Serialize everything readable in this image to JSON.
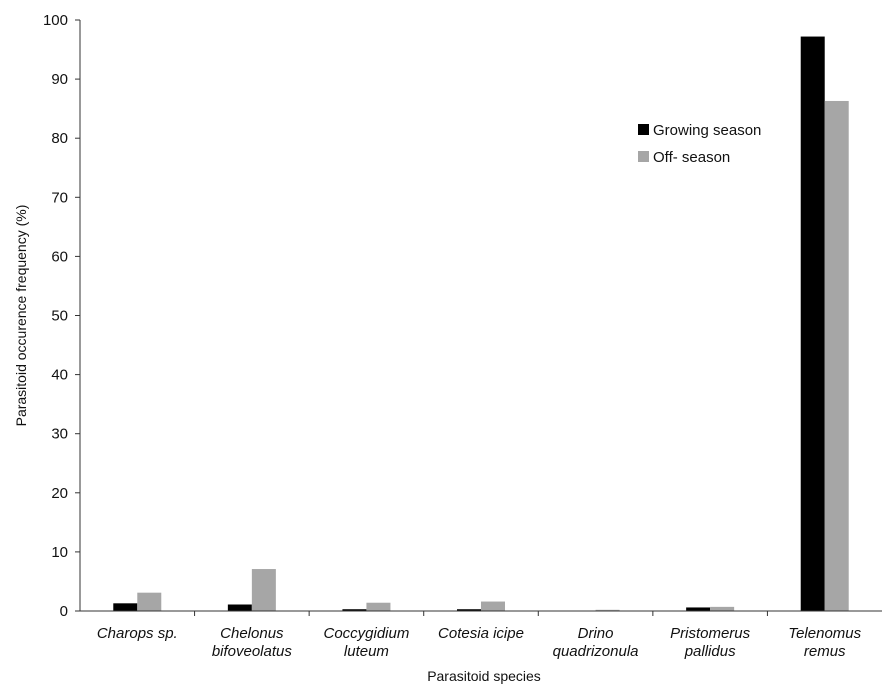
{
  "chart_data": {
    "type": "bar",
    "title": "",
    "xlabel": "Parasitoid species",
    "ylabel": "Parasitoid occurence  frequency (%)",
    "ylim": [
      0,
      100
    ],
    "yticks": [
      "0",
      "10",
      "20",
      "30",
      "40",
      "50",
      "60",
      "70",
      "80",
      "90",
      "100"
    ],
    "categories": [
      [
        "Charops sp."
      ],
      [
        "Chelonus",
        "bifoveolatus"
      ],
      [
        "Coccygidium",
        "luteum"
      ],
      [
        "Cotesia icipe"
      ],
      [
        "Drino",
        "quadrizonula"
      ],
      [
        "Pristomerus",
        "pallidus"
      ],
      [
        "Telenomus",
        "remus"
      ]
    ],
    "series": [
      {
        "name": "Growing season",
        "color": "#000000",
        "values": [
          1.3,
          1.1,
          0.3,
          0.3,
          0.0,
          0.6,
          97.2
        ]
      },
      {
        "name": "Off- season",
        "color": "#a6a6a6",
        "values": [
          3.1,
          7.1,
          1.4,
          1.6,
          0.2,
          0.7,
          86.3
        ]
      }
    ],
    "grid": false,
    "legend_position": "top-right"
  }
}
